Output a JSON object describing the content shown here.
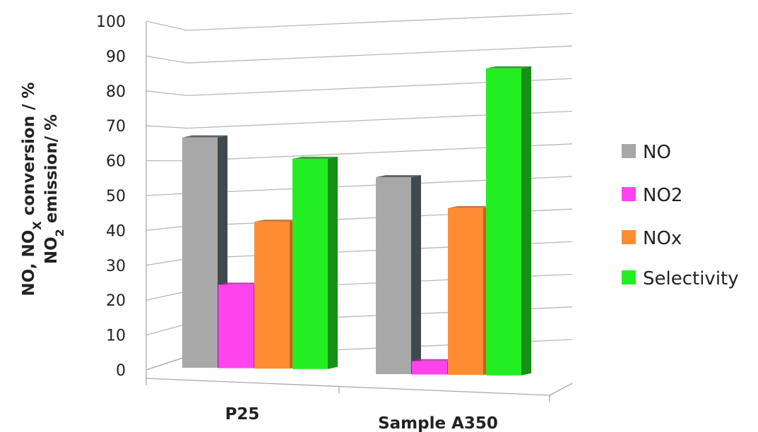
{
  "chart_data": {
    "type": "bar",
    "title": "",
    "categories": [
      "P25",
      "Sample A350"
    ],
    "series": [
      {
        "name": "NO",
        "values": [
          69,
          59
        ],
        "color": "#a8a8a8",
        "side_color": "#3f4a4f"
      },
      {
        "name": "NO2",
        "values": [
          25,
          4
        ],
        "color": "#ff44ee",
        "side_color": "#c01fb0"
      },
      {
        "name": "NOx",
        "values": [
          44,
          50
        ],
        "color": "#ff8c33",
        "side_color": "#c8621a"
      },
      {
        "name": "Selectivity",
        "values": [
          63,
          92
        ],
        "color": "#22ee22",
        "side_color": "#179017"
      }
    ],
    "ylabel_line1": {
      "a": "NO, NO",
      "sub": "X",
      "b": " conversion / %"
    },
    "ylabel_line2": {
      "a": "NO",
      "sub": "2",
      "b": " emission/ %"
    },
    "ylim": [
      0,
      100
    ],
    "yticks": [
      "0",
      "10",
      "20",
      "30",
      "40",
      "50",
      "60",
      "70",
      "80",
      "90",
      "100"
    ],
    "grid": true,
    "legend_position": "right"
  }
}
